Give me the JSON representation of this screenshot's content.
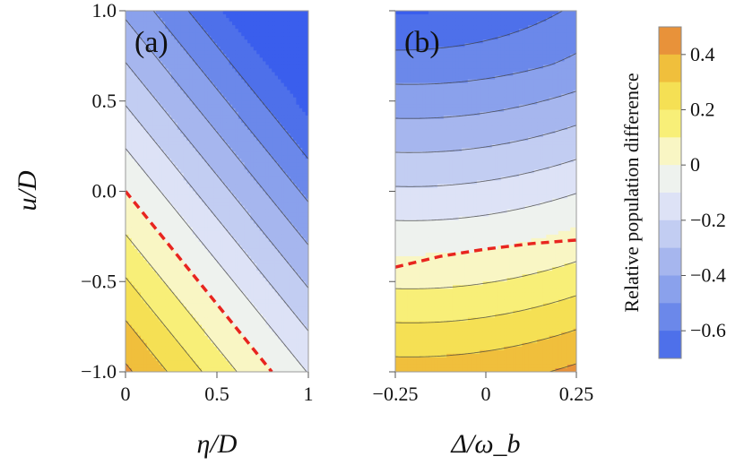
{
  "chart_data": [
    {
      "type": "heatmap",
      "panel_label": "(a)",
      "xlabel": "η/D",
      "ylabel": "u/D",
      "xlim": [
        0,
        1
      ],
      "ylim": [
        -1.0,
        1.0
      ],
      "x_ticks": [
        {
          "value": 0,
          "label": "0"
        },
        {
          "value": 0.5,
          "label": "0.5"
        },
        {
          "value": 1,
          "label": "1"
        }
      ],
      "y_ticks": [
        {
          "value": 1.0,
          "label": "1.0"
        },
        {
          "value": 0.5,
          "label": "0.5"
        },
        {
          "value": 0.0,
          "label": "0.0"
        },
        {
          "value": -0.5,
          "label": "−0.5"
        },
        {
          "value": -1.0,
          "label": "−1.0"
        }
      ],
      "zero_contour": [
        [
          0,
          0.0
        ],
        [
          0.8,
          -1.0
        ]
      ]
    },
    {
      "type": "heatmap",
      "panel_label": "(b)",
      "xlabel": "Δ/ω_b",
      "xlim": [
        -0.25,
        0.25
      ],
      "ylim": [
        -1.0,
        1.0
      ],
      "x_ticks": [
        {
          "value": -0.25,
          "label": "−0.25"
        },
        {
          "value": 0,
          "label": "0"
        },
        {
          "value": 0.25,
          "label": "0.25"
        }
      ],
      "zero_contour": [
        [
          -0.25,
          -0.42
        ],
        [
          -0.125,
          -0.36
        ],
        [
          0.0,
          -0.32
        ],
        [
          0.125,
          -0.29
        ],
        [
          0.25,
          -0.27
        ]
      ]
    }
  ],
  "colorbar": {
    "title": "Relative population difference",
    "range": [
      -0.7,
      0.5
    ],
    "levels": [
      0.5,
      0.4,
      0.3,
      0.2,
      0.1,
      0.0,
      -0.1,
      -0.2,
      -0.3,
      -0.4,
      -0.5,
      -0.6,
      -0.7
    ],
    "colors": [
      "#e8923a",
      "#f0bf3c",
      "#f5e054",
      "#f8ef78",
      "#f9f6c4",
      "#eef2ee",
      "#dde2f6",
      "#c2cdf2",
      "#a6b6ee",
      "#8aa1ec",
      "#6b88ea",
      "#4e70ea",
      "#3a5eed"
    ],
    "ticks": [
      {
        "value": 0.4,
        "label": "0.4"
      },
      {
        "value": 0.2,
        "label": "0.2"
      },
      {
        "value": 0.0,
        "label": "0"
      },
      {
        "value": -0.2,
        "label": "−0.2"
      },
      {
        "value": -0.4,
        "label": "−0.4"
      },
      {
        "value": -0.6,
        "label": "−0.6"
      }
    ]
  },
  "colors": {
    "zero_line": "#e8251f",
    "contour_line": "#3c3c3c",
    "frame": "#9a9a9a"
  }
}
